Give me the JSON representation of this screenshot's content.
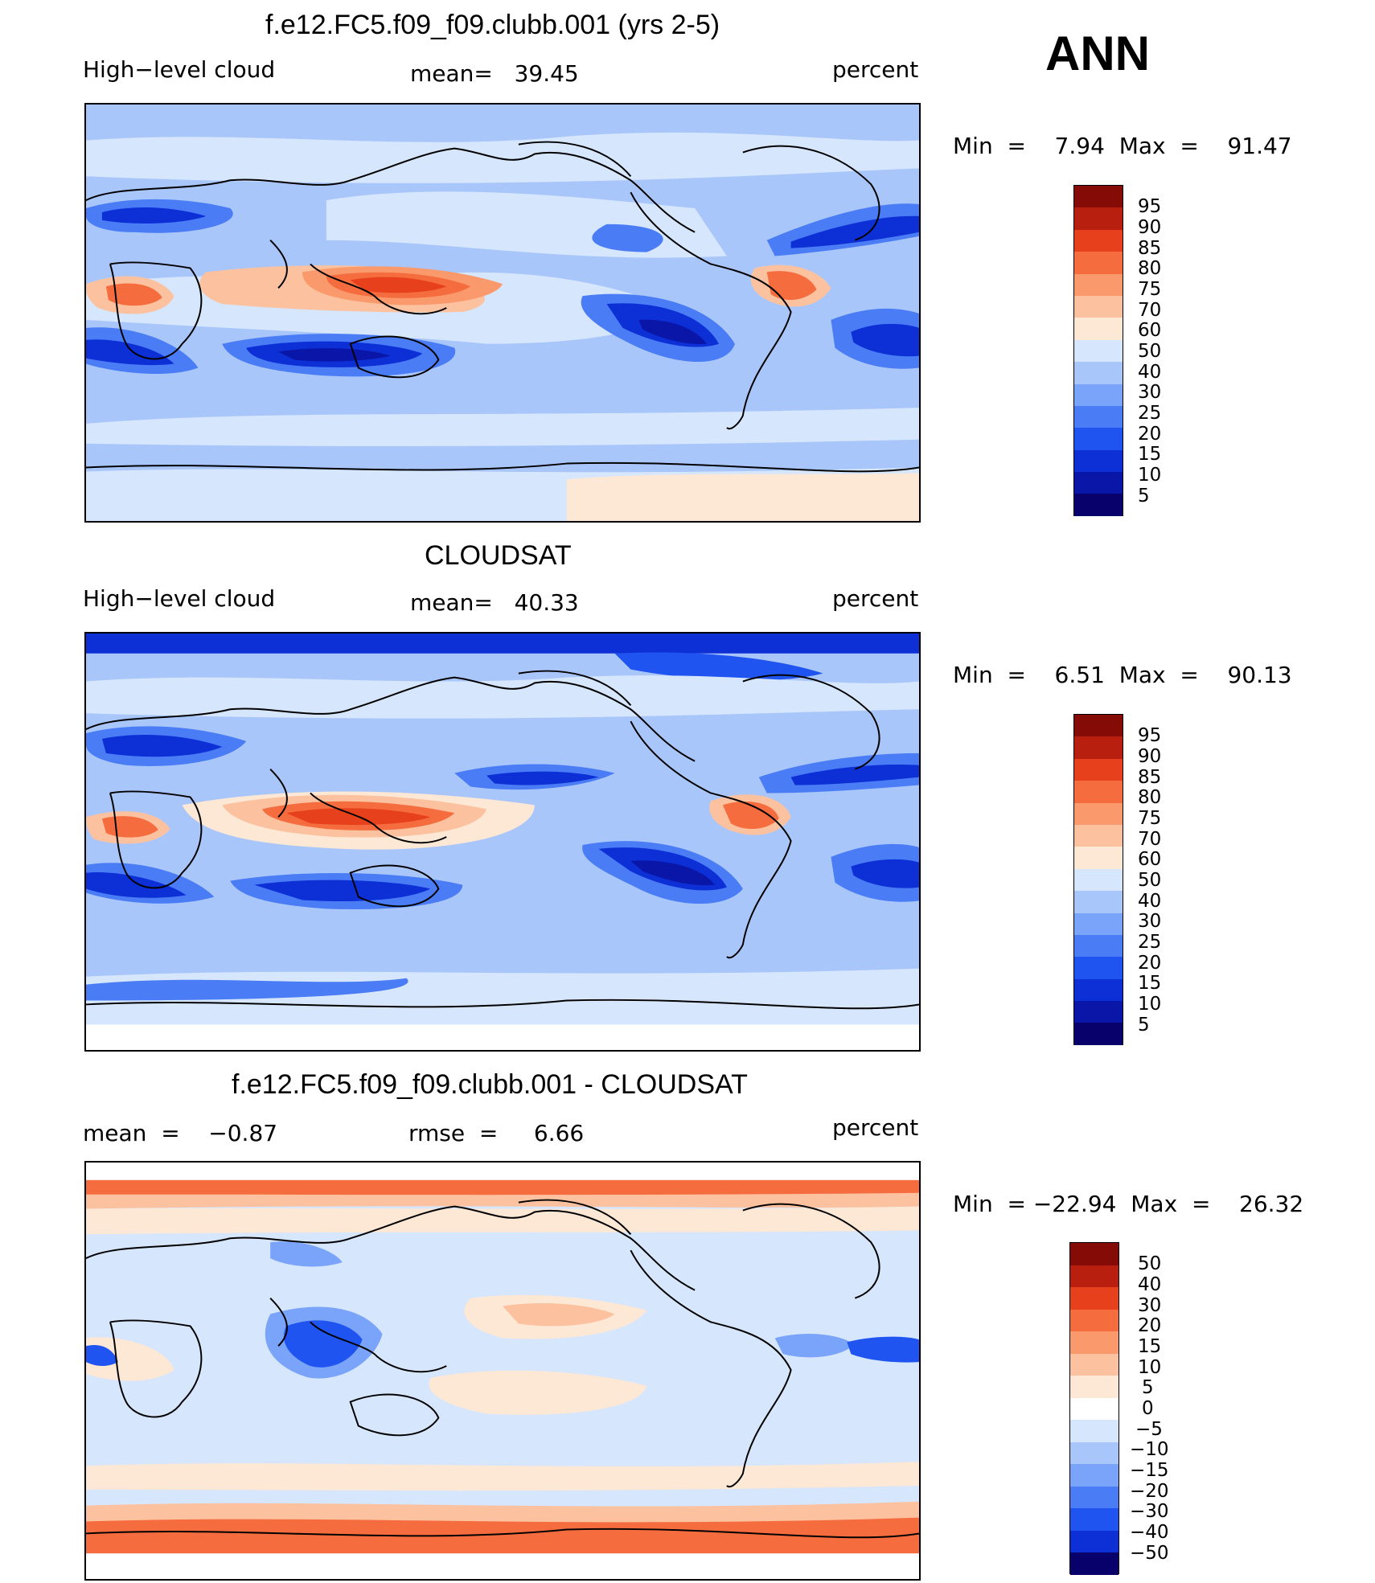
{
  "season": "ANN",
  "colors": {
    "abs_scale": [
      "#08006b",
      "#0a16a8",
      "#0d2fd6",
      "#1f54f0",
      "#4a7df5",
      "#7aa4f9",
      "#a9c6fb",
      "#d6e6fd",
      "#fde7d5",
      "#fcc2a0",
      "#fa9a6c",
      "#f56c3f",
      "#e6411c",
      "#b81f0e",
      "#850b06"
    ],
    "diff_scale": [
      "#08006b",
      "#0a16a8",
      "#0d2fd6",
      "#1f54f0",
      "#4a7df5",
      "#7aa4f9",
      "#a9c6fb",
      "#d6e6fd",
      "#fde7d5",
      "#fcc2a0",
      "#fa9a6c",
      "#f56c3f",
      "#e6411c",
      "#b81f0e",
      "#850b06"
    ]
  },
  "panels": [
    {
      "title": "f.e12.FC5.f09_f09.clubb.001 (yrs 2-5)",
      "left_label": "High−level cloud",
      "center_label": "mean=   39.45",
      "right_label": "percent",
      "minmax": "Min  =    7.94  Max  =    91.47",
      "colorbar_labels": [
        "95",
        "90",
        "85",
        "80",
        "75",
        "70",
        "60",
        "50",
        "40",
        "30",
        "25",
        "20",
        "15",
        "10",
        "5"
      ]
    },
    {
      "title": "CLOUDSAT",
      "left_label": "High−level cloud",
      "center_label": "mean=   40.33",
      "right_label": "percent",
      "minmax": "Min  =    6.51  Max  =    90.13",
      "colorbar_labels": [
        "95",
        "90",
        "85",
        "80",
        "75",
        "70",
        "60",
        "50",
        "40",
        "30",
        "25",
        "20",
        "15",
        "10",
        "5"
      ]
    },
    {
      "title": "f.e12.FC5.f09_f09.clubb.001 - CLOUDSAT",
      "left_label": "mean  =    −0.87",
      "center_label": "rmse  =     6.66",
      "right_label": "percent",
      "minmax": "Min  = −22.94  Max  =    26.32",
      "colorbar_labels": [
        "50",
        "40",
        "30",
        "20",
        "15",
        "10",
        "5",
        "0",
        "−5",
        "−10",
        "−15",
        "−20",
        "−30",
        "−40",
        "−50"
      ]
    }
  ]
}
